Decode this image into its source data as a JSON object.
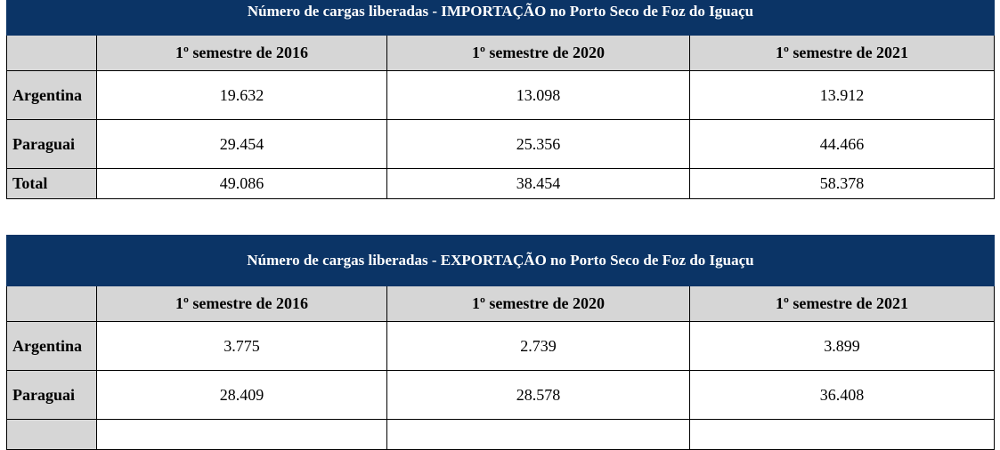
{
  "import_table": {
    "title": "Número de cargas liberadas - IMPORTAÇÃO no Porto Seco de Foz do Iguaçu",
    "headers": [
      "",
      "1º semestre de 2016",
      "1º semestre de 2020",
      "1º semestre de 2021"
    ],
    "rows": [
      {
        "label": "Argentina",
        "values": [
          "19.632",
          "13.098",
          "13.912"
        ]
      },
      {
        "label": "Paraguai",
        "values": [
          "29.454",
          "25.356",
          "44.466"
        ]
      },
      {
        "label": "Total",
        "values": [
          "49.086",
          "38.454",
          "58.378"
        ]
      }
    ]
  },
  "export_table": {
    "title": "Número de cargas liberadas - EXPORTAÇÃO no Porto Seco de Foz do Iguaçu",
    "headers": [
      "",
      "1º semestre de 2016",
      "1º semestre de 2020",
      "1º semestre de 2021"
    ],
    "rows": [
      {
        "label": "Argentina",
        "values": [
          "3.775",
          "2.739",
          "3.899"
        ]
      },
      {
        "label": "Paraguai",
        "values": [
          "28.409",
          "28.578",
          "36.408"
        ]
      }
    ]
  },
  "colors": {
    "title_background": "#0b3466",
    "header_background": "#d6d6d6"
  }
}
